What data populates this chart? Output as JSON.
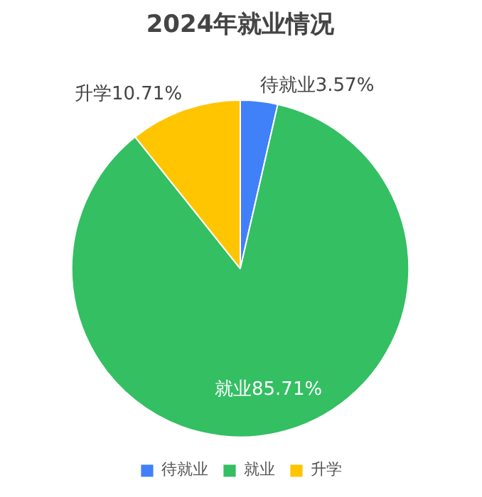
{
  "chart_data": {
    "type": "pie",
    "title": "2024年就业情况",
    "categories": [
      "待就业",
      "就业",
      "升学"
    ],
    "values": [
      3.57,
      85.71,
      10.71
    ],
    "colors": [
      "#4080f8",
      "#33bf62",
      "#ffc501"
    ],
    "value_labels": [
      "待就业3.57%",
      "就业85.71%",
      "升学10.71%"
    ],
    "legend": "bottom"
  }
}
